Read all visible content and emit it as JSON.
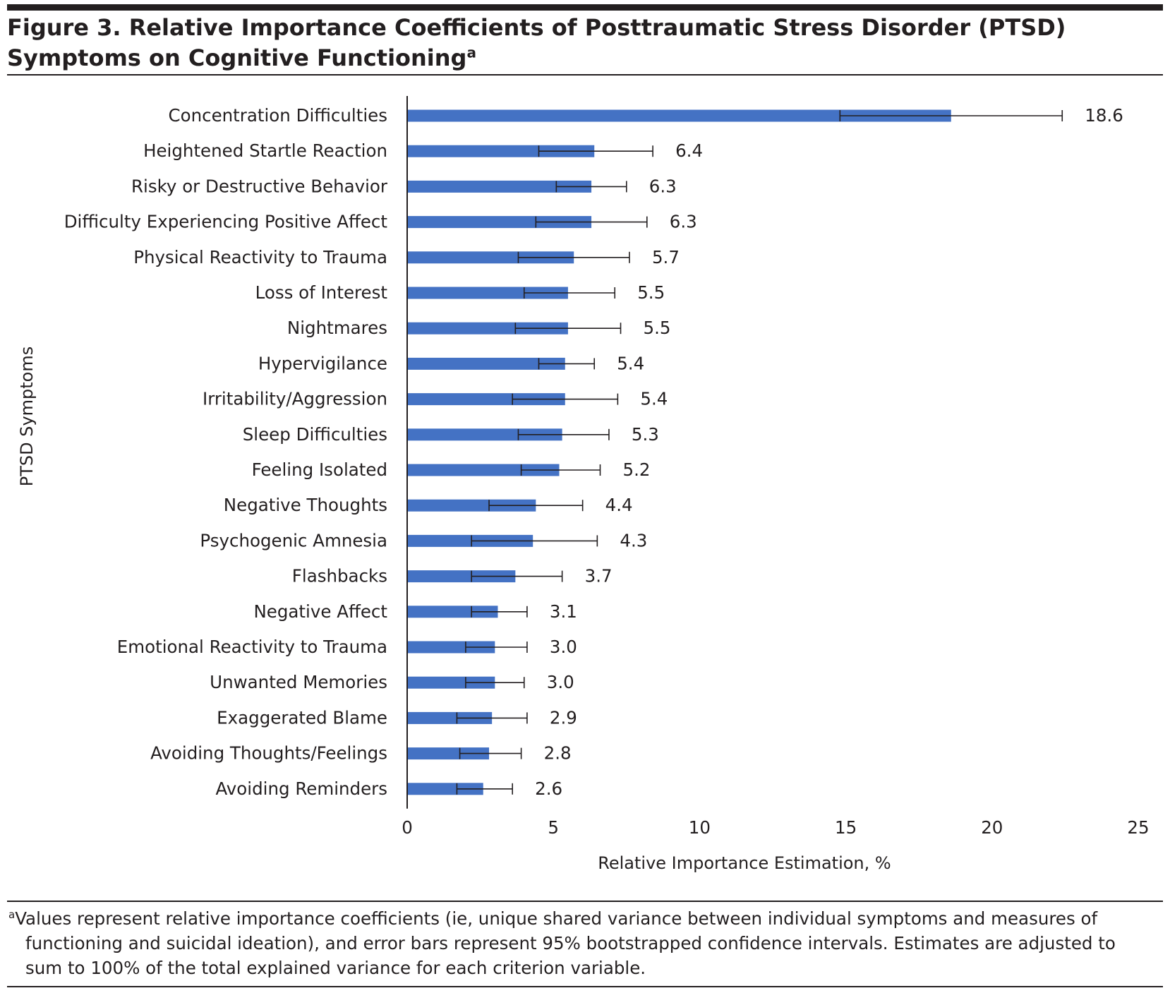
{
  "figure": {
    "title": "Figure 3. Relative Importance Coefficients of Posttraumatic Stress Disorder (PTSD) Symptoms on Cognitive Functioning",
    "title_superscript": "a",
    "footnote_marker": "a",
    "footnote": "Values represent relative importance coefficients (ie, unique shared variance between individual symptoms and measures of functioning and suicidal ideation), and error bars represent 95% bootstrapped confidence intervals. Estimates are adjusted to sum to 100% of the total explained variance for each criterion variable."
  },
  "chart_data": {
    "type": "bar",
    "orientation": "horizontal",
    "title": "",
    "xlabel": "Relative Importance Estimation, %",
    "ylabel": "PTSD Symptoms",
    "xlim": [
      0,
      25
    ],
    "xticks": [
      0,
      5,
      10,
      15,
      20,
      25
    ],
    "grid": false,
    "bar_color": "#4472c4",
    "categories": [
      "Concentration Difficulties",
      "Heightened Startle Reaction",
      "Risky or Destructive Behavior",
      "Difficulty Experiencing Positive  Affect",
      "Physical Reactivity to Trauma",
      "Loss of Interest",
      "Nightmares",
      "Hypervigilance",
      "Irritability/Aggression",
      "Sleep Difficulties",
      "Feeling Isolated",
      "Negative Thoughts",
      "Psychogenic Amnesia",
      "Flashbacks",
      "Negative  Affect",
      "Emotional Reactivity to Trauma",
      "Unwanted Memories",
      "Exaggerated Blame",
      "Avoiding Thoughts/Feelings",
      "Avoiding Reminders"
    ],
    "values": [
      18.6,
      6.4,
      6.3,
      6.3,
      5.7,
      5.5,
      5.5,
      5.4,
      5.4,
      5.3,
      5.2,
      4.4,
      4.3,
      3.7,
      3.1,
      3.0,
      3.0,
      2.9,
      2.8,
      2.6
    ],
    "value_labels": [
      "18.6",
      "6.4",
      "6.3",
      "6.3",
      "5.7",
      "5.5",
      "5.5",
      "5.4",
      "5.4",
      "5.3",
      "5.2",
      "4.4",
      "4.3",
      "3.7",
      "3.1",
      "3.0",
      "3.0",
      "2.9",
      "2.8",
      "2.6"
    ],
    "ci_lower": [
      14.8,
      4.5,
      5.1,
      4.4,
      3.8,
      4.0,
      3.7,
      4.5,
      3.6,
      3.8,
      3.9,
      2.8,
      2.2,
      2.2,
      2.2,
      2.0,
      2.0,
      1.7,
      1.8,
      1.7
    ],
    "ci_upper": [
      22.4,
      8.4,
      7.5,
      8.2,
      7.6,
      7.1,
      7.3,
      6.4,
      7.2,
      6.9,
      6.6,
      6.0,
      6.5,
      5.3,
      4.1,
      4.1,
      4.0,
      4.1,
      3.9,
      3.6
    ]
  }
}
